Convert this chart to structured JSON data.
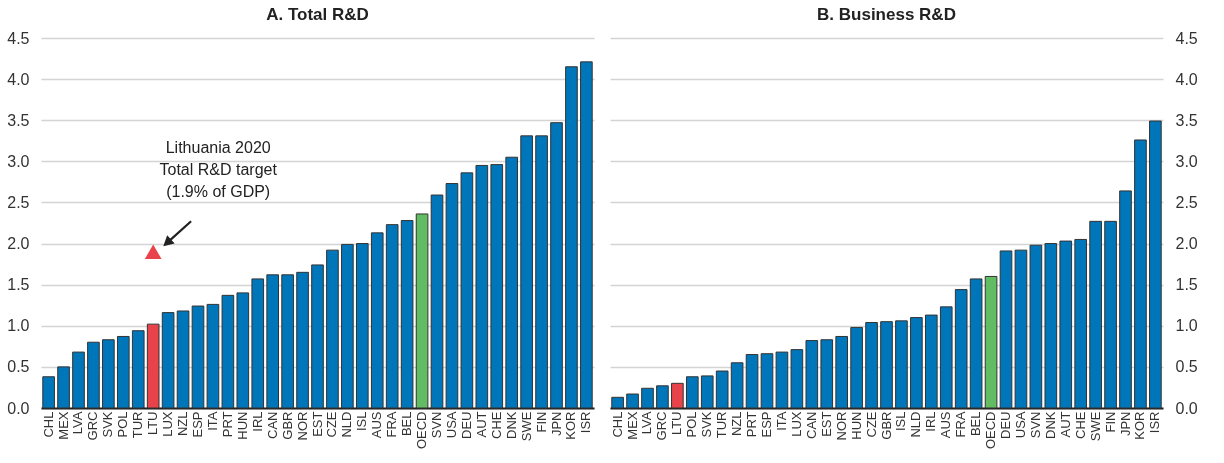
{
  "chart_data": [
    {
      "type": "bar",
      "title": "A. Total R&D",
      "categories": [
        "CHL",
        "MEX",
        "LVA",
        "GRC",
        "SVK",
        "POL",
        "TUR",
        "LTU",
        "LUX",
        "NZL",
        "ESP",
        "ITA",
        "PRT",
        "HUN",
        "IRL",
        "CAN",
        "GBR",
        "NOR",
        "EST",
        "CZE",
        "NLD",
        "ISL",
        "AUS",
        "FRA",
        "BEL",
        "OECD",
        "SVN",
        "USA",
        "DEU",
        "AUT",
        "CHE",
        "DNK",
        "SWE",
        "FIN",
        "JPN",
        "KOR",
        "ISR"
      ],
      "series": [
        {
          "values": [
            0.38,
            0.5,
            0.68,
            0.8,
            0.83,
            0.87,
            0.94,
            1.02,
            1.16,
            1.18,
            1.24,
            1.26,
            1.37,
            1.4,
            1.57,
            1.62,
            1.62,
            1.65,
            1.74,
            1.92,
            1.99,
            2.0,
            2.13,
            2.23,
            2.28,
            2.36,
            2.59,
            2.73,
            2.86,
            2.95,
            2.96,
            3.05,
            3.31,
            3.31,
            3.47,
            4.15,
            4.21
          ],
          "colors": [
            "#0076ba",
            "#0076ba",
            "#0076ba",
            "#0076ba",
            "#0076ba",
            "#0076ba",
            "#0076ba",
            "#e8434a",
            "#0076ba",
            "#0076ba",
            "#0076ba",
            "#0076ba",
            "#0076ba",
            "#0076ba",
            "#0076ba",
            "#0076ba",
            "#0076ba",
            "#0076ba",
            "#0076ba",
            "#0076ba",
            "#0076ba",
            "#0076ba",
            "#0076ba",
            "#0076ba",
            "#0076ba",
            "#62bc63",
            "#0076ba",
            "#0076ba",
            "#0076ba",
            "#0076ba",
            "#0076ba",
            "#0076ba",
            "#0076ba",
            "#0076ba",
            "#0076ba",
            "#0076ba",
            "#0076ba"
          ]
        },
        {
          "type": "scatter",
          "x": [
            "LTU"
          ],
          "values": [
            1.9
          ],
          "color": "#e8434a",
          "marker": "triangle"
        }
      ],
      "annotations": [
        "Lithuania 2020\nTotal R&D target\n(1.9% of GDP)"
      ],
      "ylim": [
        0,
        4.5
      ],
      "yticks": [
        {
          "value": 0,
          "label": "0.0"
        },
        0.5,
        {
          "value": 1,
          "label": "1.0"
        },
        1.5,
        {
          "value": 2,
          "label": "2.0"
        },
        2.5,
        {
          "value": 3,
          "label": "3.0"
        },
        3.5,
        {
          "value": 4,
          "label": "4.0"
        },
        4.5
      ],
      "grid": "y",
      "legend": false
    },
    {
      "type": "bar",
      "title": "B. Business R&D",
      "categories": [
        "CHL",
        "MEX",
        "LVA",
        "GRC",
        "LTU",
        "POL",
        "SVK",
        "TUR",
        "NZL",
        "PRT",
        "ESP",
        "ITA",
        "LUX",
        "CAN",
        "EST",
        "NOR",
        "HUN",
        "CZE",
        "GBR",
        "ISL",
        "NLD",
        "IRL",
        "AUS",
        "FRA",
        "BEL",
        "OECD",
        "DEU",
        "USA",
        "SVN",
        "DNK",
        "AUT",
        "CHE",
        "SWE",
        "FIN",
        "JPN",
        "KOR",
        "ISR"
      ],
      "series": [
        {
          "values": [
            0.13,
            0.17,
            0.24,
            0.27,
            0.3,
            0.38,
            0.39,
            0.45,
            0.55,
            0.65,
            0.66,
            0.68,
            0.71,
            0.82,
            0.83,
            0.87,
            0.98,
            1.04,
            1.05,
            1.06,
            1.1,
            1.13,
            1.23,
            1.44,
            1.57,
            1.6,
            1.91,
            1.92,
            1.98,
            2.0,
            2.03,
            2.05,
            2.27,
            2.27,
            2.64,
            3.26,
            3.49
          ],
          "colors": [
            "#0076ba",
            "#0076ba",
            "#0076ba",
            "#0076ba",
            "#e8434a",
            "#0076ba",
            "#0076ba",
            "#0076ba",
            "#0076ba",
            "#0076ba",
            "#0076ba",
            "#0076ba",
            "#0076ba",
            "#0076ba",
            "#0076ba",
            "#0076ba",
            "#0076ba",
            "#0076ba",
            "#0076ba",
            "#0076ba",
            "#0076ba",
            "#0076ba",
            "#0076ba",
            "#0076ba",
            "#0076ba",
            "#62bc63",
            "#0076ba",
            "#0076ba",
            "#0076ba",
            "#0076ba",
            "#0076ba",
            "#0076ba",
            "#0076ba",
            "#0076ba",
            "#0076ba",
            "#0076ba",
            "#0076ba"
          ]
        }
      ],
      "ylim": [
        0,
        4.5
      ],
      "yticks": [
        {
          "value": 0,
          "label": "0.0"
        },
        0.5,
        {
          "value": 1,
          "label": "1.0"
        },
        1.5,
        {
          "value": 2,
          "label": "2.0"
        },
        2.5,
        {
          "value": 3,
          "label": "3.0"
        },
        3.5,
        {
          "value": 4,
          "label": "4.0"
        },
        4.5
      ],
      "grid": "y",
      "legend": false
    }
  ]
}
